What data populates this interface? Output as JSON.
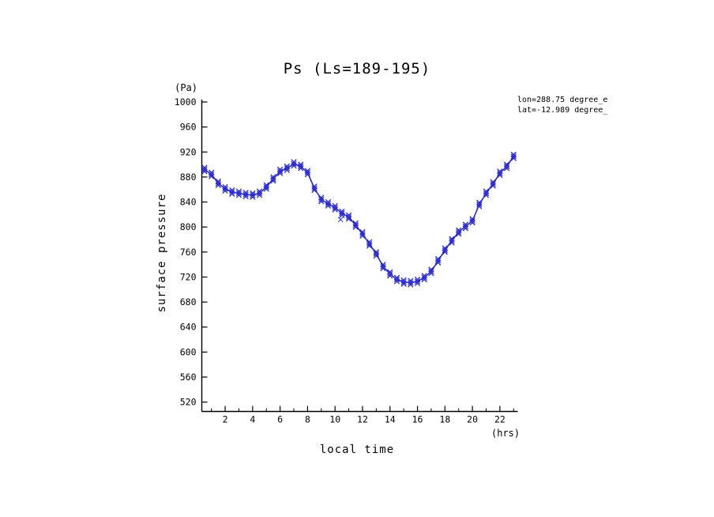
{
  "page": {
    "background": "#ffffff"
  },
  "chart_data": {
    "type": "line",
    "title": "Ps (Ls=189-195)",
    "xlabel": "local time",
    "x_unit": "(hrs)",
    "ylabel": "surface pressure",
    "y_unit": "(Pa)",
    "annotations": [
      "lon=288.75 degree_e",
      "lat=-12.989 degree_"
    ],
    "line_color": "#2a2ad2",
    "axis_color": "#000000",
    "grid": false,
    "legend": "none",
    "xlim": [
      0.3,
      23.3
    ],
    "ylim": [
      505,
      1000
    ],
    "x_ticks": [
      2,
      4,
      6,
      8,
      10,
      12,
      14,
      16,
      18,
      20,
      22
    ],
    "y_ticks": [
      520,
      560,
      600,
      640,
      680,
      720,
      760,
      800,
      840,
      880,
      920,
      960,
      1000
    ],
    "series": [
      {
        "name": "surface pressure (Pa)",
        "marker": "x",
        "x": [
          0.5,
          1.0,
          1.5,
          2.0,
          2.5,
          3.0,
          3.5,
          4.0,
          4.5,
          5.0,
          5.5,
          6.0,
          6.5,
          7.0,
          7.5,
          8.0,
          8.5,
          9.0,
          9.5,
          10.0,
          10.5,
          11.0,
          11.5,
          12.0,
          12.5,
          13.0,
          13.5,
          14.0,
          14.5,
          15.0,
          15.5,
          16.0,
          16.5,
          17.0,
          17.5,
          18.0,
          18.5,
          19.0,
          19.5,
          20.0,
          20.5,
          21.0,
          21.5,
          22.0,
          22.5,
          23.0
        ],
        "y": [
          892,
          884,
          870,
          861,
          856,
          854,
          852,
          851,
          854,
          864,
          877,
          889,
          894,
          901,
          897,
          887,
          862,
          844,
          837,
          831,
          822,
          816,
          803,
          789,
          773,
          757,
          737,
          725,
          716,
          712,
          711,
          713,
          719,
          729,
          746,
          763,
          778,
          792,
          801,
          810,
          836,
          854,
          869,
          886,
          897,
          913
        ]
      }
    ],
    "outliers": [
      {
        "x": 10.4,
        "y": 812
      }
    ]
  }
}
